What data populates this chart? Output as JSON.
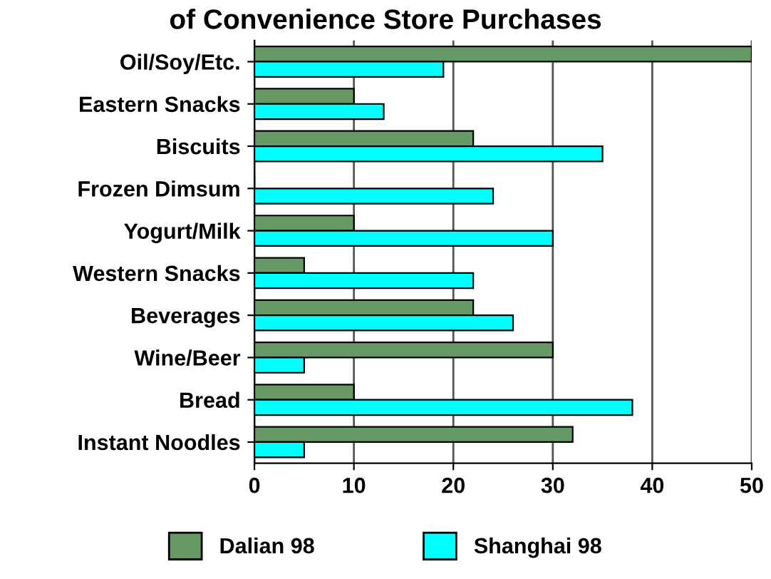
{
  "chart_data": {
    "type": "bar",
    "orientation": "horizontal",
    "title": "of Convenience Store Purchases",
    "categories": [
      "Oil/Soy/Etc.",
      "Eastern Snacks",
      "Biscuits",
      "Frozen Dimsum",
      "Yogurt/Milk",
      "Western Snacks",
      "Beverages",
      "Wine/Beer",
      "Bread",
      "Instant Noodles"
    ],
    "series": [
      {
        "name": "Dalian 98",
        "color": "#669966",
        "values": [
          50,
          10,
          22,
          0,
          10,
          5,
          22,
          30,
          10,
          32
        ]
      },
      {
        "name": "Shanghai 98",
        "color": "#00ffff",
        "values": [
          19,
          13,
          35,
          24,
          30,
          22,
          26,
          5,
          38,
          5
        ]
      }
    ],
    "xlim": [
      0,
      50
    ],
    "xticks": [
      0,
      10,
      20,
      30,
      40,
      50
    ],
    "grid": "x",
    "legend": "bottom"
  }
}
